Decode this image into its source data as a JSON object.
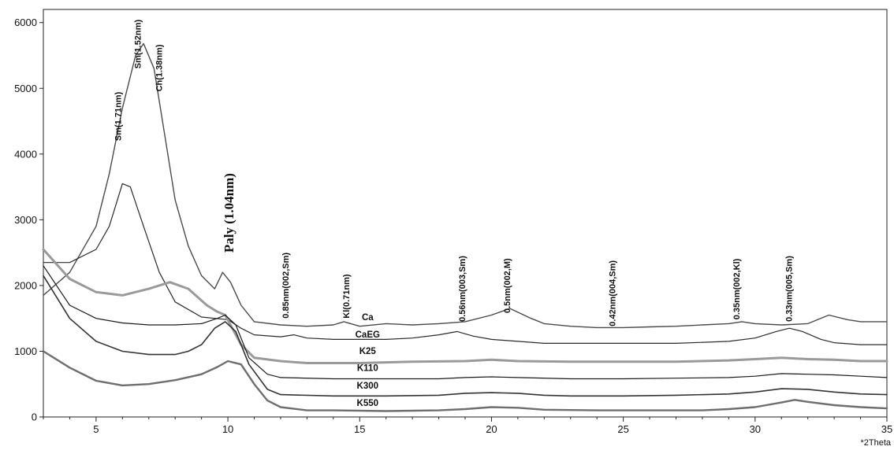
{
  "chart_data": {
    "type": "line",
    "xlabel": "*2Theta",
    "ylabel": "",
    "xlim": [
      3,
      35
    ],
    "ylim": [
      0,
      6200
    ],
    "xticks": [
      5,
      10,
      15,
      20,
      25,
      30,
      35
    ],
    "yticks": [
      0,
      1000,
      2000,
      3000,
      4000,
      5000,
      6000
    ],
    "grid": false,
    "legend": "none",
    "series": [
      {
        "name": "Ca",
        "color": "#4a4a4a",
        "width": 1.4,
        "points": [
          [
            3,
            1850
          ],
          [
            4,
            2200
          ],
          [
            5,
            2900
          ],
          [
            5.5,
            3700
          ],
          [
            6,
            4700
          ],
          [
            6.5,
            5500
          ],
          [
            6.8,
            5680
          ],
          [
            7.2,
            5300
          ],
          [
            7.6,
            4300
          ],
          [
            8,
            3300
          ],
          [
            8.5,
            2600
          ],
          [
            9,
            2150
          ],
          [
            9.5,
            1950
          ],
          [
            9.8,
            2200
          ],
          [
            10.1,
            2050
          ],
          [
            10.5,
            1700
          ],
          [
            11,
            1450
          ],
          [
            12,
            1400
          ],
          [
            13,
            1380
          ],
          [
            14,
            1400
          ],
          [
            14.4,
            1450
          ],
          [
            15,
            1380
          ],
          [
            16,
            1420
          ],
          [
            17,
            1400
          ],
          [
            18,
            1420
          ],
          [
            19,
            1450
          ],
          [
            20,
            1550
          ],
          [
            20.7,
            1650
          ],
          [
            21.5,
            1500
          ],
          [
            22,
            1420
          ],
          [
            23,
            1380
          ],
          [
            24,
            1360
          ],
          [
            25,
            1360
          ],
          [
            26,
            1370
          ],
          [
            27,
            1380
          ],
          [
            28,
            1400
          ],
          [
            29,
            1420
          ],
          [
            29.5,
            1450
          ],
          [
            30,
            1420
          ],
          [
            31,
            1400
          ],
          [
            32,
            1420
          ],
          [
            32.8,
            1550
          ],
          [
            33.5,
            1480
          ],
          [
            34,
            1450
          ],
          [
            35,
            1450
          ]
        ]
      },
      {
        "name": "CaEG",
        "color": "#2a2a2a",
        "width": 1.2,
        "points": [
          [
            3,
            2350
          ],
          [
            4,
            2350
          ],
          [
            5,
            2550
          ],
          [
            5.5,
            2900
          ],
          [
            6,
            3550
          ],
          [
            6.3,
            3500
          ],
          [
            6.8,
            2900
          ],
          [
            7.4,
            2200
          ],
          [
            8,
            1750
          ],
          [
            9,
            1520
          ],
          [
            10,
            1480
          ],
          [
            10.5,
            1350
          ],
          [
            11,
            1250
          ],
          [
            12,
            1220
          ],
          [
            12.5,
            1250
          ],
          [
            13,
            1200
          ],
          [
            14,
            1180
          ],
          [
            15,
            1180
          ],
          [
            16,
            1180
          ],
          [
            17,
            1200
          ],
          [
            18,
            1250
          ],
          [
            18.7,
            1300
          ],
          [
            19.3,
            1230
          ],
          [
            20,
            1180
          ],
          [
            21,
            1150
          ],
          [
            22,
            1120
          ],
          [
            25,
            1120
          ],
          [
            27,
            1120
          ],
          [
            29,
            1150
          ],
          [
            30,
            1200
          ],
          [
            30.8,
            1300
          ],
          [
            31.3,
            1350
          ],
          [
            31.8,
            1300
          ],
          [
            32.5,
            1180
          ],
          [
            33,
            1130
          ],
          [
            34,
            1100
          ],
          [
            35,
            1100
          ]
        ]
      },
      {
        "name": "K25",
        "color": "#9a9a9a",
        "width": 3,
        "points": [
          [
            3,
            2550
          ],
          [
            4,
            2100
          ],
          [
            5,
            1900
          ],
          [
            6,
            1850
          ],
          [
            7,
            1950
          ],
          [
            7.8,
            2050
          ],
          [
            8.5,
            1950
          ],
          [
            9.2,
            1700
          ],
          [
            9.6,
            1600
          ],
          [
            9.9,
            1550
          ],
          [
            10.5,
            1100
          ],
          [
            11,
            900
          ],
          [
            12,
            850
          ],
          [
            13,
            820
          ],
          [
            15,
            820
          ],
          [
            17,
            840
          ],
          [
            19,
            850
          ],
          [
            20,
            870
          ],
          [
            21,
            850
          ],
          [
            23,
            840
          ],
          [
            25,
            840
          ],
          [
            27,
            840
          ],
          [
            29,
            860
          ],
          [
            30,
            880
          ],
          [
            31,
            900
          ],
          [
            32,
            880
          ],
          [
            33,
            870
          ],
          [
            34,
            850
          ],
          [
            35,
            850
          ]
        ]
      },
      {
        "name": "K110",
        "color": "#1a1a1a",
        "width": 1.2,
        "points": [
          [
            3,
            2300
          ],
          [
            4,
            1700
          ],
          [
            5,
            1500
          ],
          [
            6,
            1430
          ],
          [
            7,
            1400
          ],
          [
            8,
            1400
          ],
          [
            9,
            1420
          ],
          [
            9.6,
            1500
          ],
          [
            9.9,
            1550
          ],
          [
            10.3,
            1400
          ],
          [
            10.8,
            900
          ],
          [
            11.5,
            650
          ],
          [
            12,
            600
          ],
          [
            14,
            580
          ],
          [
            16,
            580
          ],
          [
            18,
            580
          ],
          [
            19,
            600
          ],
          [
            20,
            610
          ],
          [
            21,
            600
          ],
          [
            23,
            580
          ],
          [
            25,
            580
          ],
          [
            27,
            590
          ],
          [
            29,
            600
          ],
          [
            30,
            620
          ],
          [
            31,
            660
          ],
          [
            32,
            650
          ],
          [
            33,
            640
          ],
          [
            34,
            620
          ],
          [
            35,
            600
          ]
        ]
      },
      {
        "name": "K300",
        "color": "#333333",
        "width": 1.6,
        "points": [
          [
            3,
            2150
          ],
          [
            4,
            1500
          ],
          [
            5,
            1150
          ],
          [
            6,
            1000
          ],
          [
            7,
            950
          ],
          [
            8,
            950
          ],
          [
            8.5,
            1000
          ],
          [
            9,
            1100
          ],
          [
            9.5,
            1350
          ],
          [
            9.9,
            1450
          ],
          [
            10.3,
            1300
          ],
          [
            10.8,
            800
          ],
          [
            11.5,
            420
          ],
          [
            12,
            340
          ],
          [
            14,
            320
          ],
          [
            16,
            320
          ],
          [
            18,
            330
          ],
          [
            19,
            360
          ],
          [
            20,
            370
          ],
          [
            21,
            360
          ],
          [
            22,
            330
          ],
          [
            23,
            320
          ],
          [
            25,
            320
          ],
          [
            27,
            330
          ],
          [
            29,
            350
          ],
          [
            30,
            380
          ],
          [
            31,
            430
          ],
          [
            32,
            420
          ],
          [
            33,
            380
          ],
          [
            34,
            350
          ],
          [
            35,
            340
          ]
        ]
      },
      {
        "name": "K550",
        "color": "#6e6e6e",
        "width": 2.4,
        "points": [
          [
            3,
            1000
          ],
          [
            4,
            750
          ],
          [
            5,
            550
          ],
          [
            6,
            480
          ],
          [
            7,
            500
          ],
          [
            8,
            560
          ],
          [
            9,
            650
          ],
          [
            9.6,
            760
          ],
          [
            10,
            850
          ],
          [
            10.5,
            800
          ],
          [
            11,
            500
          ],
          [
            11.5,
            250
          ],
          [
            12,
            150
          ],
          [
            13,
            100
          ],
          [
            14,
            100
          ],
          [
            16,
            90
          ],
          [
            18,
            100
          ],
          [
            19,
            120
          ],
          [
            20,
            150
          ],
          [
            21,
            140
          ],
          [
            22,
            110
          ],
          [
            24,
            100
          ],
          [
            26,
            100
          ],
          [
            28,
            100
          ],
          [
            29,
            120
          ],
          [
            30,
            150
          ],
          [
            31,
            220
          ],
          [
            31.5,
            260
          ],
          [
            32,
            230
          ],
          [
            33,
            180
          ],
          [
            34,
            150
          ],
          [
            35,
            130
          ]
        ]
      }
    ],
    "series_labels": [
      {
        "text": "Ca",
        "x": 15.3,
        "y": 1470
      },
      {
        "text": "CaEG",
        "x": 15.3,
        "y": 1210
      },
      {
        "text": "K25",
        "x": 15.3,
        "y": 960
      },
      {
        "text": "K110",
        "x": 15.3,
        "y": 700
      },
      {
        "text": "K300",
        "x": 15.3,
        "y": 430
      },
      {
        "text": "K550",
        "x": 15.3,
        "y": 170
      }
    ],
    "annotations": [
      {
        "text": "Sm(1.71nm)",
        "x": 5.95,
        "y": 4200,
        "big": false
      },
      {
        "text": "Sm(1.52nm)",
        "x": 6.7,
        "y": 5300,
        "big": false
      },
      {
        "text": "Ch(1.38nm)",
        "x": 7.5,
        "y": 4950,
        "big": false
      },
      {
        "text": "Paly (1.04nm)",
        "x": 10.2,
        "y": 2500,
        "big": true
      },
      {
        "text": "0.85nm(002,Sm)",
        "x": 12.3,
        "y": 1500,
        "big": false
      },
      {
        "text": "Kl(0.71nm)",
        "x": 14.6,
        "y": 1500,
        "big": false
      },
      {
        "text": "0.56nm(003,Sm)",
        "x": 19.0,
        "y": 1450,
        "big": false
      },
      {
        "text": "0.5nm(002,M)",
        "x": 20.7,
        "y": 1580,
        "big": false
      },
      {
        "text": "0.42nm(004,Sm)",
        "x": 24.7,
        "y": 1380,
        "big": false
      },
      {
        "text": "0.35nm(002,Kl)",
        "x": 29.4,
        "y": 1480,
        "big": false
      },
      {
        "text": "0.33nm(005,Sm)",
        "x": 31.4,
        "y": 1450,
        "big": false
      }
    ]
  }
}
